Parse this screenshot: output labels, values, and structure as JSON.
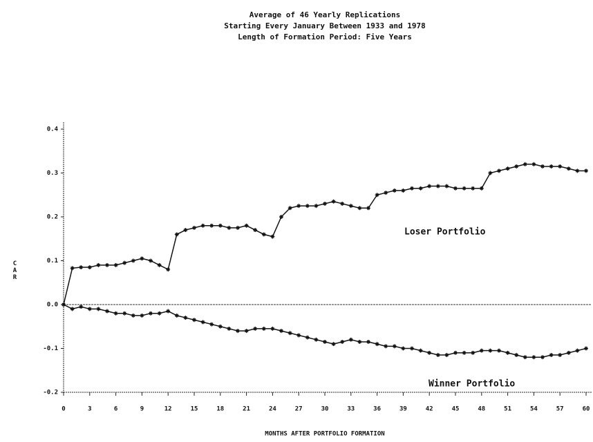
{
  "chart_data": {
    "type": "line",
    "title": [
      "Average of 46 Yearly Replications",
      "Starting Every January Between 1933 and 1978",
      "Length of Formation Period: Five Years"
    ],
    "x_label": "MONTHS AFTER PORTFOLIO FORMATION",
    "y_label": "CAR",
    "annotations": [
      "Loser Portfolio",
      "Winner Portfolio"
    ],
    "x": [
      0,
      1,
      2,
      3,
      4,
      5,
      6,
      7,
      8,
      9,
      10,
      11,
      12,
      13,
      14,
      15,
      16,
      17,
      18,
      19,
      20,
      21,
      22,
      23,
      24,
      25,
      26,
      27,
      28,
      29,
      30,
      31,
      32,
      33,
      34,
      35,
      36,
      37,
      38,
      39,
      40,
      41,
      42,
      43,
      44,
      45,
      46,
      47,
      48,
      49,
      50,
      51,
      52,
      53,
      54,
      55,
      56,
      57,
      58,
      59,
      60
    ],
    "series": [
      {
        "name": "Loser Portfolio",
        "color": "#111111",
        "values": [
          0.0,
          0.083,
          0.085,
          0.085,
          0.09,
          0.09,
          0.09,
          0.095,
          0.1,
          0.105,
          0.1,
          0.09,
          0.08,
          0.16,
          0.17,
          0.175,
          0.18,
          0.18,
          0.18,
          0.175,
          0.175,
          0.18,
          0.17,
          0.16,
          0.155,
          0.2,
          0.22,
          0.225,
          0.225,
          0.225,
          0.23,
          0.235,
          0.23,
          0.225,
          0.22,
          0.22,
          0.25,
          0.255,
          0.26,
          0.26,
          0.265,
          0.265,
          0.27,
          0.27,
          0.27,
          0.265,
          0.265,
          0.265,
          0.265,
          0.3,
          0.305,
          0.31,
          0.315,
          0.32,
          0.32,
          0.315,
          0.315,
          0.315,
          0.31,
          0.305,
          0.305
        ]
      },
      {
        "name": "Winner Portfolio",
        "color": "#111111",
        "values": [
          0.0,
          -0.01,
          -0.005,
          -0.01,
          -0.01,
          -0.015,
          -0.02,
          -0.02,
          -0.025,
          -0.025,
          -0.02,
          -0.02,
          -0.015,
          -0.025,
          -0.03,
          -0.035,
          -0.04,
          -0.045,
          -0.05,
          -0.055,
          -0.06,
          -0.06,
          -0.055,
          -0.055,
          -0.055,
          -0.06,
          -0.065,
          -0.07,
          -0.075,
          -0.08,
          -0.085,
          -0.09,
          -0.085,
          -0.08,
          -0.085,
          -0.085,
          -0.09,
          -0.095,
          -0.095,
          -0.1,
          -0.1,
          -0.105,
          -0.11,
          -0.115,
          -0.115,
          -0.11,
          -0.11,
          -0.11,
          -0.105,
          -0.105,
          -0.105,
          -0.11,
          -0.115,
          -0.12,
          -0.12,
          -0.12,
          -0.115,
          -0.115,
          -0.11,
          -0.105,
          -0.1
        ]
      }
    ],
    "xlim": [
      0,
      60
    ],
    "xticks": [
      0,
      3,
      6,
      9,
      12,
      15,
      18,
      21,
      24,
      27,
      30,
      33,
      36,
      39,
      42,
      45,
      48,
      51,
      54,
      57,
      60
    ],
    "ylim": [
      -0.2,
      0.4
    ],
    "yticks": [
      -0.2,
      -0.1,
      {
        "value": 0,
        "label": "0.0"
      },
      0.1,
      0.2,
      0.3,
      0.4
    ],
    "zero_line": true
  }
}
